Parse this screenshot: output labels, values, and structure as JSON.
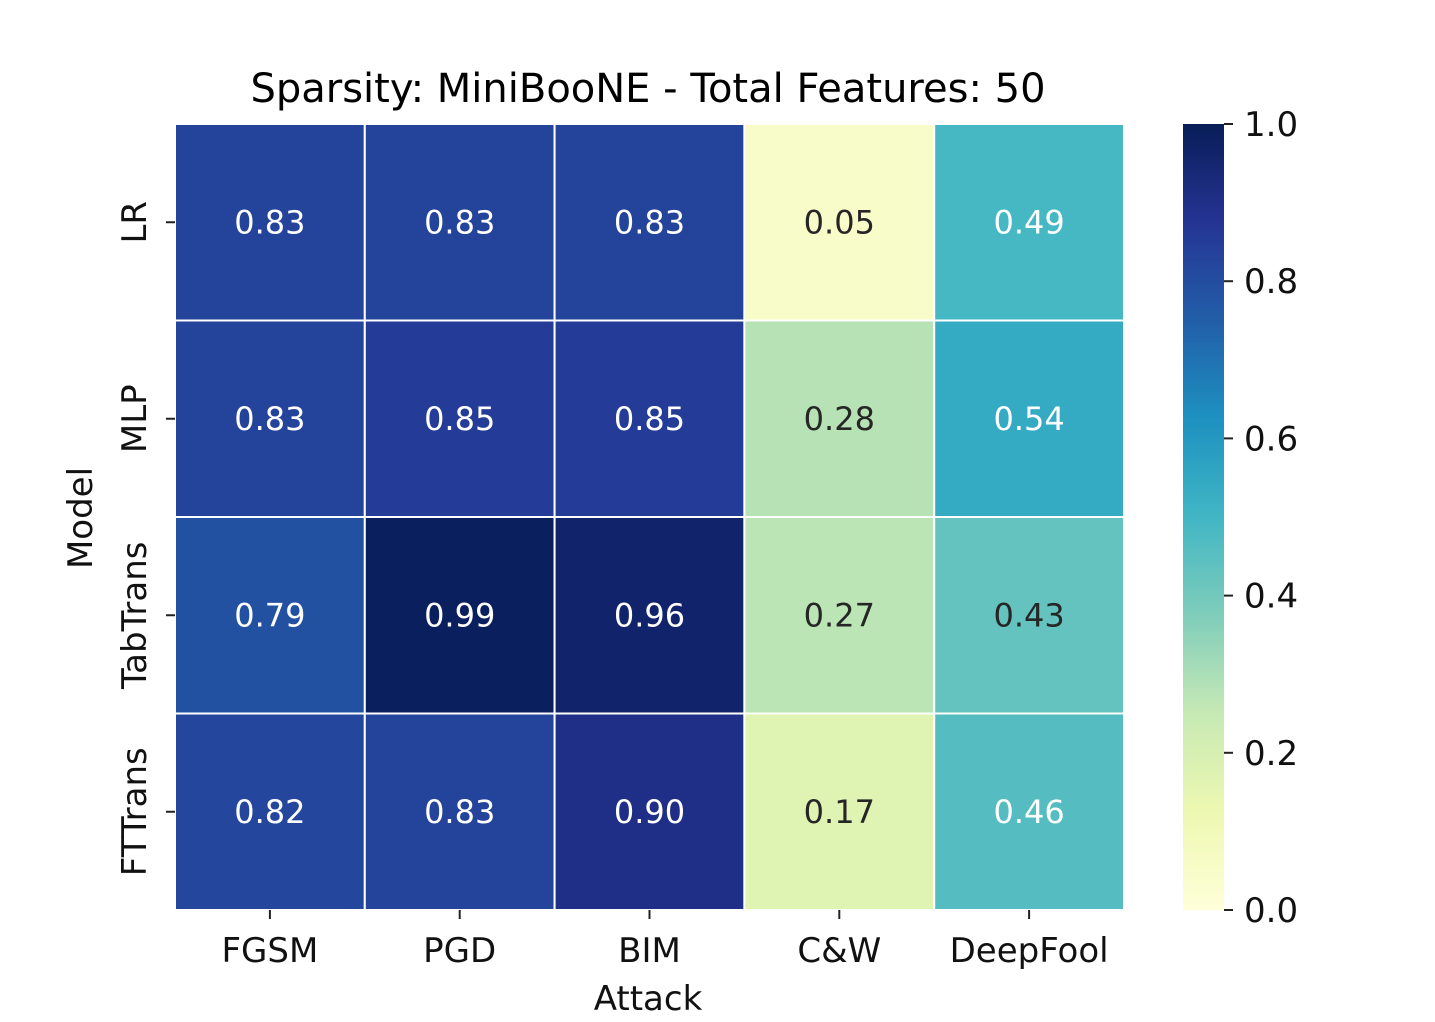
{
  "chart_data": {
    "type": "heatmap",
    "title": "Sparsity: MiniBooNE - Total Features: 50",
    "xlabel": "Attack",
    "ylabel": "Model",
    "x_categories": [
      "FGSM",
      "PGD",
      "BIM",
      "C&W",
      "DeepFool"
    ],
    "y_categories": [
      "LR",
      "MLP",
      "TabTrans",
      "FTTrans"
    ],
    "values": [
      [
        0.83,
        0.83,
        0.83,
        0.05,
        0.49
      ],
      [
        0.83,
        0.85,
        0.85,
        0.28,
        0.54
      ],
      [
        0.79,
        0.99,
        0.96,
        0.27,
        0.43
      ],
      [
        0.82,
        0.83,
        0.9,
        0.17,
        0.46
      ]
    ],
    "value_labels": [
      [
        "0.83",
        "0.83",
        "0.83",
        "0.05",
        "0.49"
      ],
      [
        "0.83",
        "0.85",
        "0.85",
        "0.28",
        "0.54"
      ],
      [
        "0.79",
        "0.99",
        "0.96",
        "0.27",
        "0.43"
      ],
      [
        "0.82",
        "0.83",
        "0.90",
        "0.17",
        "0.46"
      ]
    ],
    "colormap": "YlGnBu",
    "vmin": 0.0,
    "vmax": 1.0,
    "colorbar_ticks": [
      "0.0",
      "0.2",
      "0.4",
      "0.6",
      "0.8",
      "1.0"
    ],
    "colorbar_tick_values": [
      0.0,
      0.2,
      0.4,
      0.6,
      0.8,
      1.0
    ]
  }
}
